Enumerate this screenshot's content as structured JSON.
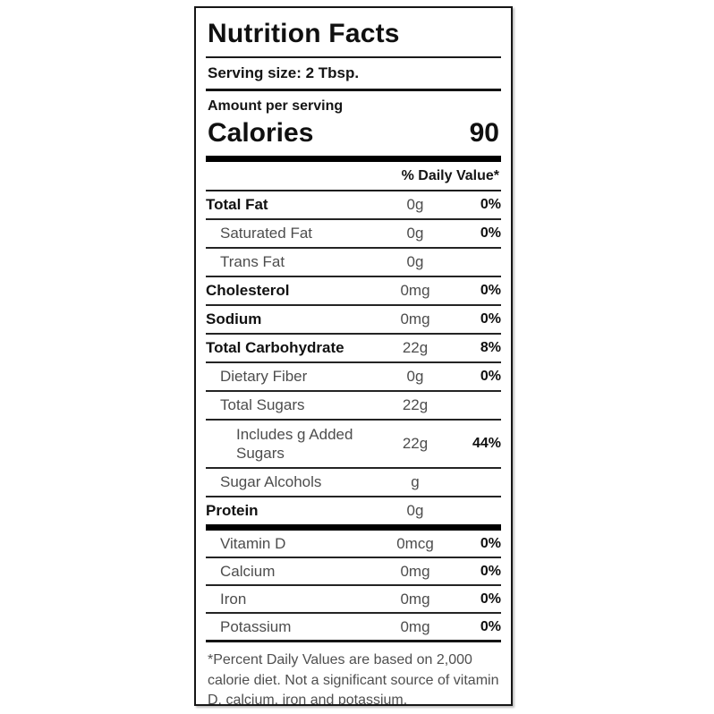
{
  "label": {
    "title": "Nutrition Facts",
    "serving_size": "Serving size: 2 Tbsp.",
    "amount_per_serving": "Amount per serving",
    "calories_label": "Calories",
    "calories_value": "90",
    "daily_value_header": "% Daily Value*",
    "nutrients": [
      {
        "name": "Total Fat",
        "amount": "0g",
        "dv": "0%"
      },
      {
        "name": "Saturated Fat",
        "amount": "0g",
        "dv": "0%"
      },
      {
        "name": "Trans Fat",
        "amount": "0g",
        "dv": ""
      },
      {
        "name": "Cholesterol",
        "amount": "0mg",
        "dv": "0%"
      },
      {
        "name": "Sodium",
        "amount": "0mg",
        "dv": "0%"
      },
      {
        "name": "Total Carbohydrate",
        "amount": "22g",
        "dv": "8%"
      },
      {
        "name": "Dietary Fiber",
        "amount": "0g",
        "dv": "0%"
      },
      {
        "name": "Total Sugars",
        "amount": "22g",
        "dv": ""
      },
      {
        "name": "Includes g Added Sugars",
        "amount": "22g",
        "dv": "44%"
      },
      {
        "name": "Sugar Alcohols",
        "amount": "g",
        "dv": ""
      },
      {
        "name": "Protein",
        "amount": "0g",
        "dv": ""
      }
    ],
    "micronutrients": [
      {
        "name": "Vitamin D",
        "amount": "0mcg",
        "dv": "0%"
      },
      {
        "name": "Calcium",
        "amount": "0mg",
        "dv": "0%"
      },
      {
        "name": "Iron",
        "amount": "0mg",
        "dv": "0%"
      },
      {
        "name": "Potassium",
        "amount": "0mg",
        "dv": "0%"
      }
    ],
    "footnote": "*Percent Daily Values are based on 2,000 calorie diet. Not a significant source of vitamin D, calcium, iron and potassium."
  },
  "colors": {
    "background": "#ffffff",
    "text_primary": "#111111",
    "text_secondary": "#4d4d4d",
    "rule": "#1a1a1a"
  }
}
